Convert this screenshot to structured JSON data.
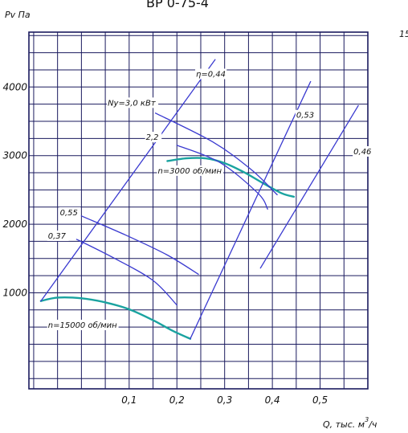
{
  "header_title": "ВР 0-75-4",
  "corner_fragment": "15",
  "chart_data": {
    "type": "line",
    "title": "",
    "ylabel": "Pv Па",
    "xlabel": "Q, тыс. м³/ч",
    "xlabel_parts": {
      "prefix": "Q, тыс. м",
      "sup": "3",
      "suffix": "/ч"
    },
    "xlim": [
      -0.11,
      0.6
    ],
    "ylim": [
      -400,
      4800
    ],
    "x_ticks": [
      0.1,
      0.2,
      0.3,
      0.4,
      0.5
    ],
    "x_tick_labels": [
      "0,1",
      "0,2",
      "0,3",
      "0,4",
      "0,5"
    ],
    "y_ticks": [
      1000,
      2000,
      3000,
      4000
    ],
    "y_tick_labels": [
      "1000",
      "2000",
      "3000",
      "4000"
    ],
    "grid": true,
    "grid_step_x": 0.05,
    "grid_step_y": 250,
    "colors": {
      "grid": "#1a1a5e",
      "network": "#3a3ad0",
      "curve": "#1aa3a0",
      "text": "#111111"
    },
    "series": [
      {
        "name": "n=3000 об/мин",
        "role": "pressure-curve",
        "x": [
          0.18,
          0.22,
          0.26,
          0.3,
          0.34,
          0.38,
          0.42,
          0.445
        ],
        "y": [
          2920,
          2960,
          2960,
          2890,
          2760,
          2600,
          2450,
          2400
        ]
      },
      {
        "name": "n=15000 об/мин",
        "role": "pressure-curve",
        "x": [
          -0.085,
          -0.05,
          0,
          0.05,
          0.1,
          0.15,
          0.19,
          0.228
        ],
        "y": [
          880,
          930,
          920,
          860,
          760,
          600,
          450,
          330
        ]
      },
      {
        "name": "η=0,44",
        "role": "efficiency-ray",
        "x": [
          -0.085,
          0.28
        ],
        "y": [
          880,
          4400
        ]
      },
      {
        "name": "0,53",
        "role": "efficiency-ray",
        "x": [
          0.228,
          0.48
        ],
        "y": [
          330,
          4080
        ]
      },
      {
        "name": "0,46",
        "role": "efficiency-ray",
        "x": [
          0.375,
          0.58
        ],
        "y": [
          1360,
          3730
        ]
      },
      {
        "name": "Ny=3,0 кВт",
        "role": "power-line",
        "x": [
          0.155,
          0.275,
          0.355,
          0.41
        ],
        "y": [
          3620,
          3200,
          2800,
          2430
        ]
      },
      {
        "name": "2,2",
        "role": "power-line",
        "x": [
          0.2,
          0.29,
          0.37,
          0.39
        ],
        "y": [
          3150,
          2900,
          2450,
          2220
        ]
      },
      {
        "name": "0,55",
        "role": "power-line",
        "x": [
          0,
          0.09,
          0.18,
          0.245
        ],
        "y": [
          2120,
          1850,
          1550,
          1270
        ]
      },
      {
        "name": "0,37",
        "role": "power-line",
        "x": [
          -0.01,
          0.07,
          0.15,
          0.2
        ],
        "y": [
          1780,
          1500,
          1180,
          820
        ]
      }
    ],
    "annotations": [
      {
        "text": "η=0,44",
        "x": 0.24,
        "y": 4150
      },
      {
        "text": "0,53",
        "x": 0.45,
        "y": 3550
      },
      {
        "text": "0,46",
        "x": 0.57,
        "y": 3020
      },
      {
        "text": "Ny=3,0 кВт",
        "x": 0.055,
        "y": 3730
      },
      {
        "text": "2,2",
        "x": 0.135,
        "y": 3230
      },
      {
        "text": "0,55",
        "x": -0.045,
        "y": 2130
      },
      {
        "text": "0,37",
        "x": -0.07,
        "y": 1790
      },
      {
        "text": "n=3000 об/мин",
        "x": 0.16,
        "y": 2740
      },
      {
        "text": "n=15000 об/мин",
        "x": -0.07,
        "y": 490
      }
    ]
  }
}
